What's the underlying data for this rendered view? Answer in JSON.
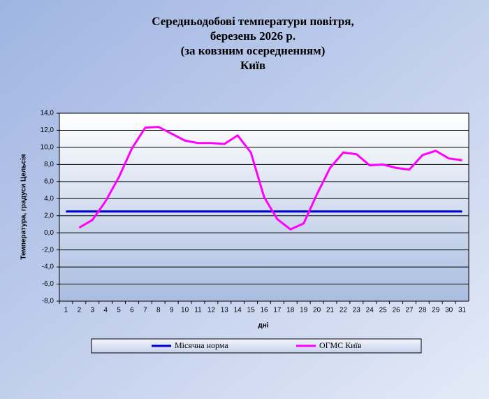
{
  "chart_data": {
    "type": "line",
    "title": [
      "Середньодобові температури повітря,",
      "березень 2026 р.",
      "(за ковзним осередненням)",
      "Київ"
    ],
    "x_label": "дні",
    "y_label": "Температура, градуси Цельсія",
    "categories": [
      "1",
      "2",
      "3",
      "4",
      "5",
      "6",
      "7",
      "8",
      "9",
      "10",
      "11",
      "12",
      "13",
      "14",
      "15",
      "16",
      "17",
      "18",
      "19",
      "20",
      "21",
      "22",
      "23",
      "24",
      "25",
      "26",
      "27",
      "28",
      "29",
      "30",
      "31"
    ],
    "ylim": [
      -8,
      14
    ],
    "yticks": [
      {
        "value": -8,
        "label": "-8,0"
      },
      {
        "value": -6,
        "label": "-6,0"
      },
      {
        "value": -4,
        "label": "-4,0"
      },
      {
        "value": -2,
        "label": "-2,0"
      },
      {
        "value": 0,
        "label": "0,0"
      },
      {
        "value": 2,
        "label": "2,0"
      },
      {
        "value": 4,
        "label": "4,0"
      },
      {
        "value": 6,
        "label": "6,0"
      },
      {
        "value": 8,
        "label": "8,0"
      },
      {
        "value": 10,
        "label": "10,0"
      },
      {
        "value": 12,
        "label": "12,0"
      },
      {
        "value": 14,
        "label": "14,0"
      }
    ],
    "grid": true,
    "series": [
      {
        "name": "Місячна норма",
        "color": "#0000cc",
        "values": [
          2.5,
          2.5,
          2.5,
          2.5,
          2.5,
          2.5,
          2.5,
          2.5,
          2.5,
          2.5,
          2.5,
          2.5,
          2.5,
          2.5,
          2.5,
          2.5,
          2.5,
          2.5,
          2.5,
          2.5,
          2.5,
          2.5,
          2.5,
          2.5,
          2.5,
          2.5,
          2.5,
          2.5,
          2.5,
          2.5,
          2.5
        ]
      },
      {
        "name": "ОГМС Київ",
        "color": "#ff00ff",
        "values": [
          null,
          0.6,
          1.5,
          3.7,
          6.5,
          9.9,
          12.3,
          12.4,
          11.6,
          10.8,
          10.5,
          10.5,
          10.4,
          11.4,
          9.4,
          4.2,
          1.6,
          0.4,
          1.1,
          4.5,
          7.6,
          9.4,
          9.2,
          7.9,
          8.0,
          7.6,
          7.4,
          9.1,
          9.6,
          8.7,
          8.5
        ]
      }
    ]
  }
}
